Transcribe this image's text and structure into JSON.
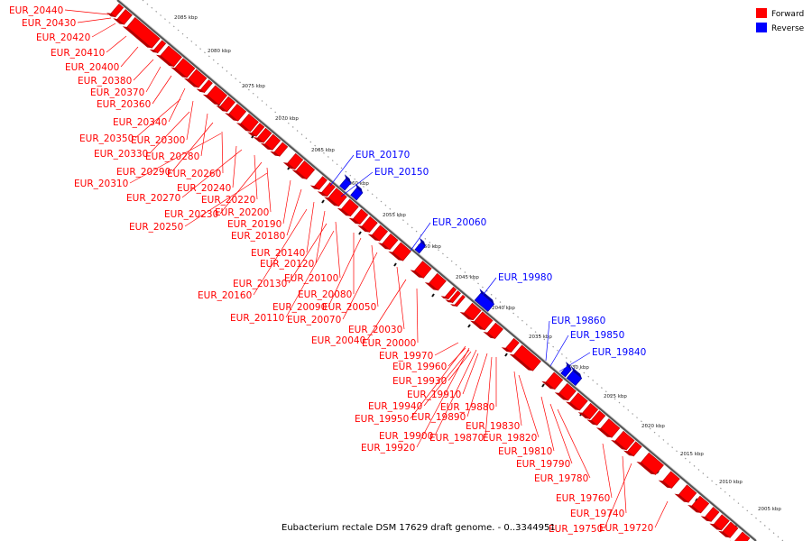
{
  "caption": "Eubacterium rectale DSM 17629 draft genome. - 0..3344951",
  "legend": [
    {
      "label": "Forward",
      "color": "#ff0000"
    },
    {
      "label": "Reverse",
      "color": "#0000ff"
    }
  ],
  "colors": {
    "forward": "#ff0000",
    "forward_dark": "#b40000",
    "reverse": "#0000ff",
    "reverse_dark": "#00009a",
    "backbone": "#777777"
  },
  "ticks": [
    "2085 kbp",
    "2080 kbp",
    "2075 kbp",
    "2070 kbp",
    "2065 kbp",
    "2060 kbp",
    "2055 kbp",
    "2050 kbp",
    "2045 kbp",
    "2040 kbp",
    "2035 kbp",
    "2030 kbp",
    "2025 kbp",
    "2020 kbp",
    "2015 kbp",
    "2010 kbp",
    "2005 kbp"
  ],
  "genes": [
    {
      "label": "EUR_20440",
      "strand": "forward"
    },
    {
      "label": "EUR_20430",
      "strand": "forward"
    },
    {
      "label": "EUR_20420",
      "strand": "forward"
    },
    {
      "label": "EUR_20410",
      "strand": "forward"
    },
    {
      "label": "EUR_20400",
      "strand": "forward"
    },
    {
      "label": "EUR_20380",
      "strand": "forward"
    },
    {
      "label": "EUR_20370",
      "strand": "forward"
    },
    {
      "label": "EUR_20360",
      "strand": "forward"
    },
    {
      "label": "EUR_20340",
      "strand": "forward"
    },
    {
      "label": "EUR_20350",
      "strand": "forward"
    },
    {
      "label": "EUR_20300",
      "strand": "forward"
    },
    {
      "label": "EUR_20330",
      "strand": "forward"
    },
    {
      "label": "EUR_20280",
      "strand": "forward"
    },
    {
      "label": "EUR_20290",
      "strand": "forward"
    },
    {
      "label": "EUR_20260",
      "strand": "forward"
    },
    {
      "label": "EUR_20310",
      "strand": "forward"
    },
    {
      "label": "EUR_20240",
      "strand": "forward"
    },
    {
      "label": "EUR_20270",
      "strand": "forward"
    },
    {
      "label": "EUR_20220",
      "strand": "forward"
    },
    {
      "label": "EUR_20230",
      "strand": "forward"
    },
    {
      "label": "EUR_20200",
      "strand": "forward"
    },
    {
      "label": "EUR_20250",
      "strand": "forward"
    },
    {
      "label": "EUR_20190",
      "strand": "forward"
    },
    {
      "label": "EUR_20180",
      "strand": "forward"
    },
    {
      "label": "EUR_20140",
      "strand": "forward"
    },
    {
      "label": "EUR_20120",
      "strand": "forward"
    },
    {
      "label": "EUR_20100",
      "strand": "forward"
    },
    {
      "label": "EUR_20130",
      "strand": "forward"
    },
    {
      "label": "EUR_20160",
      "strand": "forward"
    },
    {
      "label": "EUR_20080",
      "strand": "forward"
    },
    {
      "label": "EUR_20090",
      "strand": "forward"
    },
    {
      "label": "EUR_20050",
      "strand": "forward"
    },
    {
      "label": "EUR_20110",
      "strand": "forward"
    },
    {
      "label": "EUR_20070",
      "strand": "forward"
    },
    {
      "label": "EUR_20030",
      "strand": "forward"
    },
    {
      "label": "EUR_20040",
      "strand": "forward"
    },
    {
      "label": "EUR_20000",
      "strand": "forward"
    },
    {
      "label": "EUR_19970",
      "strand": "forward"
    },
    {
      "label": "EUR_19960",
      "strand": "forward"
    },
    {
      "label": "EUR_19930",
      "strand": "forward"
    },
    {
      "label": "EUR_19910",
      "strand": "forward"
    },
    {
      "label": "EUR_19940",
      "strand": "forward"
    },
    {
      "label": "EUR_19880",
      "strand": "forward"
    },
    {
      "label": "EUR_19950",
      "strand": "forward"
    },
    {
      "label": "EUR_19890",
      "strand": "forward"
    },
    {
      "label": "EUR_19830",
      "strand": "forward"
    },
    {
      "label": "EUR_19900",
      "strand": "forward"
    },
    {
      "label": "EUR_19870",
      "strand": "forward"
    },
    {
      "label": "EUR_19820",
      "strand": "forward"
    },
    {
      "label": "EUR_19920",
      "strand": "forward"
    },
    {
      "label": "EUR_19810",
      "strand": "forward"
    },
    {
      "label": "EUR_19790",
      "strand": "forward"
    },
    {
      "label": "EUR_19780",
      "strand": "forward"
    },
    {
      "label": "EUR_19760",
      "strand": "forward"
    },
    {
      "label": "EUR_19740",
      "strand": "forward"
    },
    {
      "label": "EUR_19750",
      "strand": "forward"
    },
    {
      "label": "EUR_19720",
      "strand": "forward"
    },
    {
      "label": "EUR_20170",
      "strand": "reverse"
    },
    {
      "label": "EUR_20150",
      "strand": "reverse"
    },
    {
      "label": "EUR_20060",
      "strand": "reverse"
    },
    {
      "label": "EUR_19980",
      "strand": "reverse"
    },
    {
      "label": "EUR_19860",
      "strand": "reverse"
    },
    {
      "label": "EUR_19850",
      "strand": "reverse"
    },
    {
      "label": "EUR_19840",
      "strand": "reverse"
    }
  ]
}
